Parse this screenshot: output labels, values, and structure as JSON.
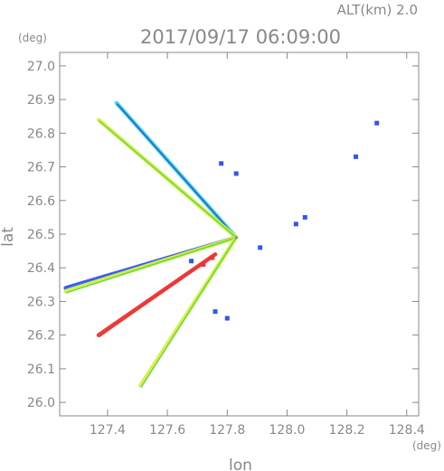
{
  "header": {
    "altitude_label": "ALT(km) 2.0",
    "timestamp": "2017/09/17 06:09:00"
  },
  "chart_data": {
    "type": "scatter",
    "title": "2017/09/17 06:09:00",
    "xlabel": "lon",
    "ylabel": "lat",
    "x_unit": "(deg)",
    "y_unit": "(deg)",
    "xlim": [
      127.24,
      128.44
    ],
    "ylim": [
      25.96,
      27.04
    ],
    "xticks": [
      127.4,
      127.6,
      127.8,
      128.0,
      128.2,
      128.4
    ],
    "xtick_labels": [
      "127.4",
      "127.6",
      "127.8",
      "128.0",
      "128.2",
      "128.4"
    ],
    "yticks": [
      26.0,
      26.1,
      26.2,
      26.3,
      26.4,
      26.5,
      26.6,
      26.7,
      26.8,
      26.9,
      27.0
    ],
    "ytick_labels": [
      "26.0",
      "26.1",
      "26.2",
      "26.3",
      "26.4",
      "26.5",
      "26.6",
      "26.7",
      "26.8",
      "26.9",
      "27.0"
    ],
    "grid": false,
    "colors": {
      "axis": "#888888",
      "blue": "#3355ee",
      "cyan": "#33ddcc",
      "green": "#66dd44",
      "yellow": "#ddee44",
      "orange": "#ff8833",
      "red": "#ee3333"
    },
    "radar_origin": [
      127.83,
      26.49
    ],
    "beams": [
      {
        "from": [
          127.43,
          26.89
        ],
        "to": [
          127.83,
          26.49
        ],
        "colors": [
          "cyan",
          "blue"
        ]
      },
      {
        "from": [
          127.37,
          26.84
        ],
        "to": [
          127.83,
          26.49
        ],
        "colors": [
          "yellow",
          "green"
        ]
      },
      {
        "from": [
          127.26,
          26.34
        ],
        "to": [
          127.83,
          26.49
        ],
        "colors": [
          "blue",
          "cyan"
        ]
      },
      {
        "from": [
          127.26,
          26.33
        ],
        "to": [
          127.83,
          26.49
        ],
        "colors": [
          "yellow",
          "green"
        ]
      },
      {
        "from": [
          127.37,
          26.2
        ],
        "to": [
          127.76,
          26.44
        ],
        "colors": [
          "red",
          "red"
        ]
      },
      {
        "from": [
          127.51,
          26.05
        ],
        "to": [
          127.83,
          26.49
        ],
        "colors": [
          "yellow",
          "green"
        ]
      }
    ],
    "echoes": [
      {
        "lon": 128.3,
        "lat": 26.83,
        "color": "blue"
      },
      {
        "lon": 128.23,
        "lat": 26.73,
        "color": "blue"
      },
      {
        "lon": 127.78,
        "lat": 26.71,
        "color": "blue"
      },
      {
        "lon": 127.83,
        "lat": 26.68,
        "color": "blue"
      },
      {
        "lon": 128.03,
        "lat": 26.53,
        "color": "blue"
      },
      {
        "lon": 128.06,
        "lat": 26.55,
        "color": "blue"
      },
      {
        "lon": 127.91,
        "lat": 26.46,
        "color": "blue"
      },
      {
        "lon": 127.8,
        "lat": 26.25,
        "color": "blue"
      },
      {
        "lon": 127.76,
        "lat": 26.27,
        "color": "blue"
      },
      {
        "lon": 127.68,
        "lat": 26.42,
        "color": "blue"
      },
      {
        "lon": 127.72,
        "lat": 26.41,
        "color": "red"
      },
      {
        "lon": 127.75,
        "lat": 26.43,
        "color": "red"
      }
    ]
  }
}
